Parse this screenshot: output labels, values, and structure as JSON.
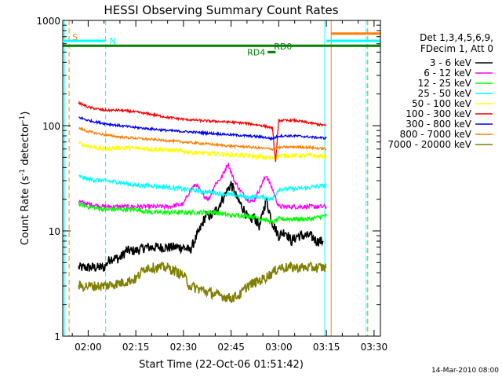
{
  "chart_data": {
    "type": "line",
    "title": "HESSI Observing Summary Count Rates",
    "xlabel": "Start Time (22-Oct-06 01:51:42)",
    "ylabel_main": "Count Rate (s",
    "ylabel_sup1": "-1",
    "ylabel_mid": " detector",
    "ylabel_sup2": "-1",
    "ylabel_end": ")",
    "yscale": "log",
    "ylim": [
      1,
      1000
    ],
    "xlim_minutes": [
      112,
      212
    ],
    "x_ticks": [
      {
        "m": 120,
        "label": "02:00"
      },
      {
        "m": 135,
        "label": "02:15"
      },
      {
        "m": 150,
        "label": "02:30"
      },
      {
        "m": 165,
        "label": "02:45"
      },
      {
        "m": 180,
        "label": "03:00"
      },
      {
        "m": 195,
        "label": "03:15"
      },
      {
        "m": 210,
        "label": "03:30"
      }
    ],
    "y_ticks": [
      {
        "v": 1,
        "label": "1"
      },
      {
        "v": 10,
        "label": "10"
      },
      {
        "v": 100,
        "label": "100"
      },
      {
        "v": 1000,
        "label": "1000"
      }
    ],
    "legend_header": [
      "Det 1,3,4,5,6,9,",
      "FDecim 1, Att 0"
    ],
    "series": [
      {
        "name": "3 - 6 keV",
        "color": "#000000",
        "x": [
          117,
          120,
          122,
          125,
          127,
          130,
          132,
          135,
          138,
          140,
          142,
          145,
          148,
          150,
          152,
          155,
          157,
          159,
          161,
          163,
          165,
          167,
          169,
          171,
          172,
          174,
          176,
          178,
          180,
          182,
          184,
          186,
          188,
          190,
          192,
          194
        ],
        "y": [
          4.5,
          4.5,
          4.5,
          4.5,
          5.5,
          5.5,
          6.5,
          6.5,
          7,
          7,
          7,
          7,
          7,
          7,
          6.5,
          10,
          14,
          14,
          17,
          22,
          28,
          20,
          16,
          12,
          14,
          11,
          20,
          12,
          9,
          10,
          8,
          9,
          9,
          9,
          8,
          8
        ]
      },
      {
        "name": "6 - 12 keV",
        "color": "#ff00ff",
        "x": [
          117,
          120,
          125,
          130,
          135,
          140,
          145,
          150,
          152,
          154,
          156,
          158,
          160,
          162,
          164,
          166,
          168,
          170,
          172,
          174,
          176,
          178,
          180,
          183,
          186,
          190,
          193,
          195
        ],
        "y": [
          19,
          18,
          17,
          17,
          17,
          17,
          17,
          18,
          24,
          28,
          22,
          20,
          28,
          32,
          44,
          30,
          24,
          20,
          19,
          25,
          34,
          25,
          17,
          17,
          17,
          17,
          17,
          17
        ]
      },
      {
        "name": "12 - 25 keV",
        "color": "#00ff00",
        "x": [
          117,
          120,
          125,
          130,
          135,
          140,
          145,
          150,
          155,
          160,
          165,
          170,
          175,
          178,
          180,
          185,
          190,
          195
        ],
        "y": [
          18,
          17,
          16,
          16,
          16,
          15,
          15,
          15,
          15,
          15,
          14,
          14,
          13,
          12,
          13,
          13,
          13,
          14
        ]
      },
      {
        "name": "25 - 50 keV",
        "color": "#00ffff",
        "x": [
          117,
          120,
          125,
          130,
          135,
          140,
          145,
          150,
          155,
          160,
          165,
          170,
          175,
          178,
          180,
          185,
          190,
          195
        ],
        "y": [
          33,
          31,
          30,
          29,
          27,
          27,
          26,
          25,
          24,
          23,
          22,
          21,
          21,
          20,
          25,
          25,
          26,
          27
        ]
      },
      {
        "name": "50 - 100 keV",
        "color": "#ffff00",
        "x": [
          117,
          120,
          125,
          130,
          135,
          140,
          145,
          150,
          155,
          160,
          165,
          170,
          175,
          178,
          180,
          185,
          190,
          195
        ],
        "y": [
          68,
          64,
          60,
          62,
          61,
          60,
          59,
          57,
          55,
          54,
          53,
          52,
          50,
          49,
          52,
          52,
          52,
          51
        ]
      },
      {
        "name": "100 - 300 keV",
        "color": "#ff0000",
        "x": [
          117,
          120,
          125,
          130,
          135,
          140,
          145,
          150,
          155,
          160,
          165,
          170,
          175,
          178,
          179,
          180,
          185,
          190,
          195
        ],
        "y": [
          165,
          150,
          140,
          140,
          135,
          128,
          120,
          115,
          112,
          110,
          108,
          105,
          100,
          95,
          45,
          112,
          112,
          106,
          100
        ]
      },
      {
        "name": "300 - 800 keV",
        "color": "#0000ff",
        "x": [
          117,
          120,
          125,
          130,
          135,
          140,
          145,
          150,
          155,
          160,
          165,
          170,
          175,
          178,
          180,
          185,
          190,
          195
        ],
        "y": [
          120,
          112,
          105,
          100,
          96,
          93,
          90,
          88,
          86,
          84,
          82,
          80,
          78,
          75,
          80,
          80,
          78,
          76
        ]
      },
      {
        "name": "800 - 7000 keV",
        "color": "#ff7f00",
        "x": [
          117,
          120,
          125,
          130,
          135,
          140,
          145,
          150,
          155,
          160,
          165,
          170,
          175,
          178,
          180,
          185,
          190,
          195
        ],
        "y": [
          95,
          88,
          82,
          78,
          76,
          74,
          72,
          70,
          68,
          66,
          64,
          63,
          61,
          60,
          62,
          63,
          62,
          60
        ]
      },
      {
        "name": "7000 - 20000 keV",
        "color": "#808000",
        "x": [
          117,
          120,
          125,
          130,
          135,
          138,
          140,
          145,
          150,
          152,
          155,
          160,
          165,
          168,
          170,
          175,
          178,
          180,
          182,
          185,
          190,
          195
        ],
        "y": [
          3,
          3,
          3,
          3.2,
          3.5,
          4.5,
          4.5,
          4.5,
          3.8,
          3,
          2.8,
          2.5,
          2.3,
          2.5,
          3,
          3.5,
          4,
          4.5,
          4.5,
          4.5,
          4.5,
          4.5
        ]
      }
    ],
    "markers": [
      {
        "label": "S",
        "color": "#ff7f00",
        "x": [
          113.5,
          114.5
        ],
        "y": 700,
        "line": false
      },
      {
        "label": "N",
        "color": "#00ffff",
        "x": [
          112,
          125.5
        ],
        "y": 640,
        "line": true
      },
      {
        "label": "RD4",
        "color": "#008000",
        "x": [
          176.5,
          179
        ],
        "y": 500,
        "line": true
      },
      {
        "label": "RD0",
        "color": "#008000",
        "x": [
          177,
          177
        ],
        "y": 565,
        "line": false
      }
    ],
    "segments": [
      {
        "color": "#008000",
        "x": [
          112,
          212
        ],
        "y": 575
      },
      {
        "color": "#00ffff",
        "x": [
          195,
          212
        ],
        "y": 640
      },
      {
        "color": "#ff7f00",
        "x": [
          196.5,
          212
        ],
        "y": 750
      }
    ],
    "vlines": [
      {
        "color": "#00ffff",
        "m": 112.5,
        "dash": false
      },
      {
        "color": "#ff7f00",
        "m": 114,
        "dash": true
      },
      {
        "color": "#00ffff",
        "m": 125.5,
        "dash": true
      },
      {
        "color": "#00ffff",
        "m": 194.5,
        "dash": false
      },
      {
        "color": "#ff7f00",
        "m": 196.5,
        "dash": false
      },
      {
        "color": "#00ffff",
        "m": 207.5,
        "dash": true
      },
      {
        "color": "#ff7f00",
        "m": 208,
        "dash": true
      }
    ],
    "footer_date": "14-Mar-2010 08:00"
  }
}
